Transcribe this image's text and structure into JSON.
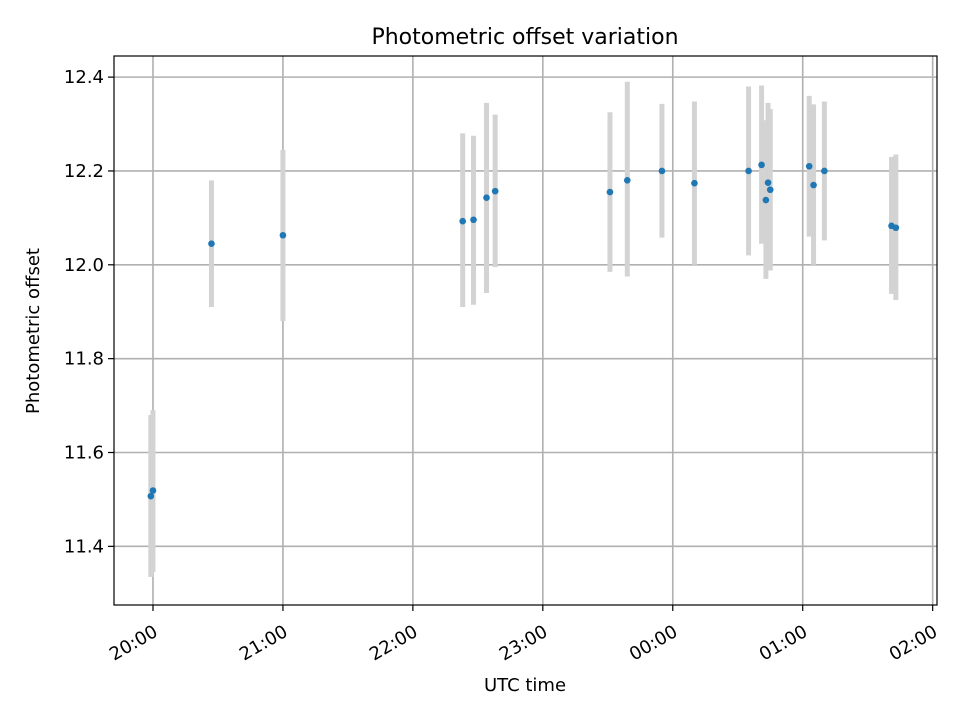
{
  "chart_data": {
    "type": "scatter",
    "title": "Photometric offset variation",
    "xlabel": "UTC time",
    "ylabel": "Photometric offset",
    "xlim": [
      "19:42",
      "02:02"
    ],
    "ylim": [
      11.275,
      12.445
    ],
    "x_ticks": [
      "20:00",
      "21:00",
      "22:00",
      "23:00",
      "00:00",
      "01:00",
      "02:00"
    ],
    "y_ticks": [
      "11.4",
      "11.6",
      "11.8",
      "12.0",
      "12.2",
      "12.4"
    ],
    "grid": true,
    "colors": {
      "points": "#1f77b4",
      "error_bars": "#d3d3d3",
      "grid": "#b0b0b0"
    },
    "points": [
      {
        "x": "19:59",
        "y": 11.507,
        "y_low": 11.335,
        "y_high": 11.68
      },
      {
        "x": "20:00",
        "y": 11.519,
        "y_low": 11.345,
        "y_high": 11.69
      },
      {
        "x": "20:27",
        "y": 12.045,
        "y_low": 11.91,
        "y_high": 12.18
      },
      {
        "x": "21:00",
        "y": 12.063,
        "y_low": 11.88,
        "y_high": 12.245
      },
      {
        "x": "22:23",
        "y": 12.093,
        "y_low": 11.91,
        "y_high": 12.28
      },
      {
        "x": "22:28",
        "y": 12.096,
        "y_low": 11.915,
        "y_high": 12.275
      },
      {
        "x": "22:34",
        "y": 12.143,
        "y_low": 11.94,
        "y_high": 12.345
      },
      {
        "x": "22:38",
        "y": 12.157,
        "y_low": 11.995,
        "y_high": 12.32
      },
      {
        "x": "23:31",
        "y": 12.155,
        "y_low": 11.985,
        "y_high": 12.325
      },
      {
        "x": "23:39",
        "y": 12.18,
        "y_low": 11.975,
        "y_high": 12.39
      },
      {
        "x": "23:55",
        "y": 12.2,
        "y_low": 12.058,
        "y_high": 12.343
      },
      {
        "x": "00:10",
        "y": 12.174,
        "y_low": 12.0,
        "y_high": 12.348
      },
      {
        "x": "00:35",
        "y": 12.2,
        "y_low": 12.02,
        "y_high": 12.38
      },
      {
        "x": "00:41",
        "y": 12.213,
        "y_low": 12.045,
        "y_high": 12.382
      },
      {
        "x": "00:43",
        "y": 12.138,
        "y_low": 11.97,
        "y_high": 12.308
      },
      {
        "x": "00:44",
        "y": 12.175,
        "y_low": 12.005,
        "y_high": 12.345
      },
      {
        "x": "00:45",
        "y": 12.16,
        "y_low": 11.988,
        "y_high": 12.332
      },
      {
        "x": "01:03",
        "y": 12.21,
        "y_low": 12.06,
        "y_high": 12.36
      },
      {
        "x": "01:05",
        "y": 12.17,
        "y_low": 12.0,
        "y_high": 12.342
      },
      {
        "x": "01:10",
        "y": 12.2,
        "y_low": 12.052,
        "y_high": 12.348
      },
      {
        "x": "01:41",
        "y": 12.083,
        "y_low": 11.938,
        "y_high": 12.23
      },
      {
        "x": "01:43",
        "y": 12.079,
        "y_low": 11.925,
        "y_high": 12.235
      }
    ]
  }
}
